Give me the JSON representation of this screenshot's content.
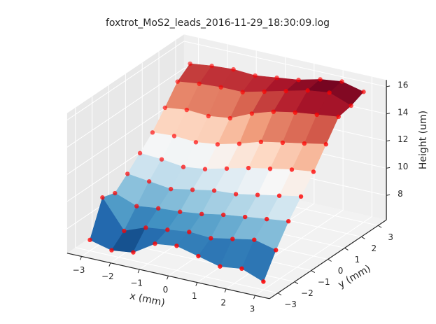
{
  "chart_data": {
    "type": "surface3d",
    "title": "foxtrot_MoS2_leads_2016-11-29_18:30:09.log",
    "x_label": "x (mm)",
    "y_label": "y (mm)",
    "z_label": "Height (um)",
    "x": [
      -3,
      -2.25,
      -1.5,
      -0.75,
      0,
      0.75,
      1.5,
      2.25,
      3
    ],
    "y": [
      -3,
      -2.25,
      -1.5,
      -0.75,
      0,
      0.75,
      1.5,
      2.25,
      3
    ],
    "z": [
      [
        7.0,
        6.6,
        6.8,
        7.8,
        8.0,
        7.6,
        7.2,
        7.4,
        6.8
      ],
      [
        9.5,
        7.4,
        8.0,
        8.2,
        8.4,
        8.3,
        8.6,
        8.9,
        8.5
      ],
      [
        9.2,
        8.6,
        8.8,
        8.9,
        9.1,
        9.4,
        9.6,
        9.8,
        10.0
      ],
      [
        10.0,
        9.8,
        9.6,
        9.9,
        10.2,
        10.3,
        10.6,
        10.9,
        11.2
      ],
      [
        10.9,
        10.8,
        10.6,
        10.8,
        11.2,
        11.6,
        11.9,
        12.2,
        12.4
      ],
      [
        11.8,
        11.9,
        11.8,
        12.0,
        12.4,
        12.9,
        13.2,
        13.5,
        13.8
      ],
      [
        13.0,
        13.2,
        13.1,
        13.3,
        14.0,
        14.5,
        14.8,
        15.0,
        15.2
      ],
      [
        14.3,
        14.5,
        14.6,
        14.6,
        15.0,
        15.4,
        15.8,
        16.0,
        15.4
      ],
      [
        15.0,
        15.2,
        15.3,
        15.2,
        15.4,
        15.6,
        16.0,
        16.2,
        15.8
      ]
    ],
    "xlim": [
      -3.5,
      3.5
    ],
    "ylim": [
      -3.5,
      3.5
    ],
    "zlim": [
      6.2,
      16.5
    ],
    "xticks": [
      {
        "value": -3,
        "label": "−3"
      },
      {
        "value": -2,
        "label": "−2"
      },
      {
        "value": -1,
        "label": "−1"
      },
      0,
      1,
      2,
      3
    ],
    "yticks": [
      {
        "value": -3,
        "label": "−3"
      },
      {
        "value": -2,
        "label": "−2"
      },
      {
        "value": -1,
        "label": "−1"
      },
      0,
      1,
      2,
      3
    ],
    "zticks": [
      8,
      10,
      12,
      14,
      16
    ],
    "colormap": [
      "#053061",
      "#2166ac",
      "#4393c3",
      "#92c5de",
      "#d1e5f0",
      "#f7f7f7",
      "#fddbc7",
      "#f4a582",
      "#d6604d",
      "#b2182b",
      "#67001f"
    ],
    "marker_color": "#ff0000",
    "grid": true
  }
}
